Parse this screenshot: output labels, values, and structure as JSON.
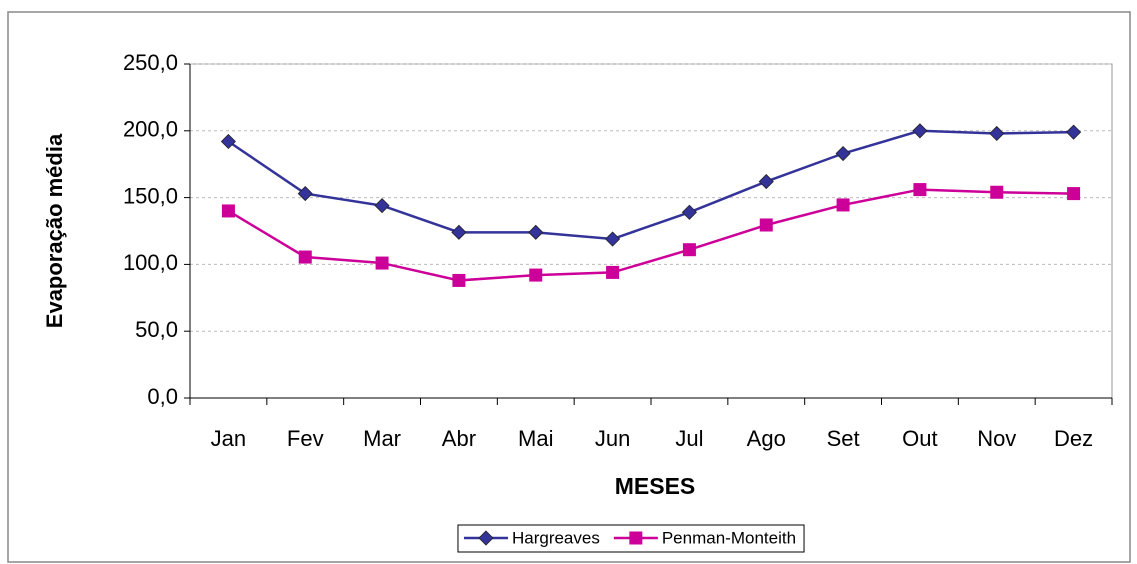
{
  "chart_data": {
    "type": "line",
    "x_label": "MESES",
    "y_label": "Evaporação média",
    "categories": [
      "Jan",
      "Fev",
      "Mar",
      "Abr",
      "Mai",
      "Jun",
      "Jul",
      "Ago",
      "Set",
      "Out",
      "Nov",
      "Dez"
    ],
    "series": [
      {
        "name": "Hargreaves",
        "color": "#333399",
        "marker": "diamond",
        "values": [
          192,
          153,
          144,
          124,
          124,
          119,
          139,
          162,
          183,
          200,
          198,
          199
        ]
      },
      {
        "name": "Penman-Monteith",
        "color": "#cc0099",
        "marker": "square",
        "values": [
          140,
          105.5,
          101,
          88,
          92,
          94,
          111,
          129.5,
          144.5,
          156,
          154,
          153
        ]
      }
    ],
    "ylim": [
      0,
      250
    ],
    "yticks": [
      {
        "value": 0,
        "label": "0,0"
      },
      {
        "value": 50,
        "label": "50,0"
      },
      {
        "value": 100,
        "label": "100,0"
      },
      {
        "value": 150,
        "label": "150,0"
      },
      {
        "value": 200,
        "label": "200,0"
      },
      {
        "value": 250,
        "label": "250,0"
      }
    ],
    "grid": true,
    "legend": "bottom"
  }
}
